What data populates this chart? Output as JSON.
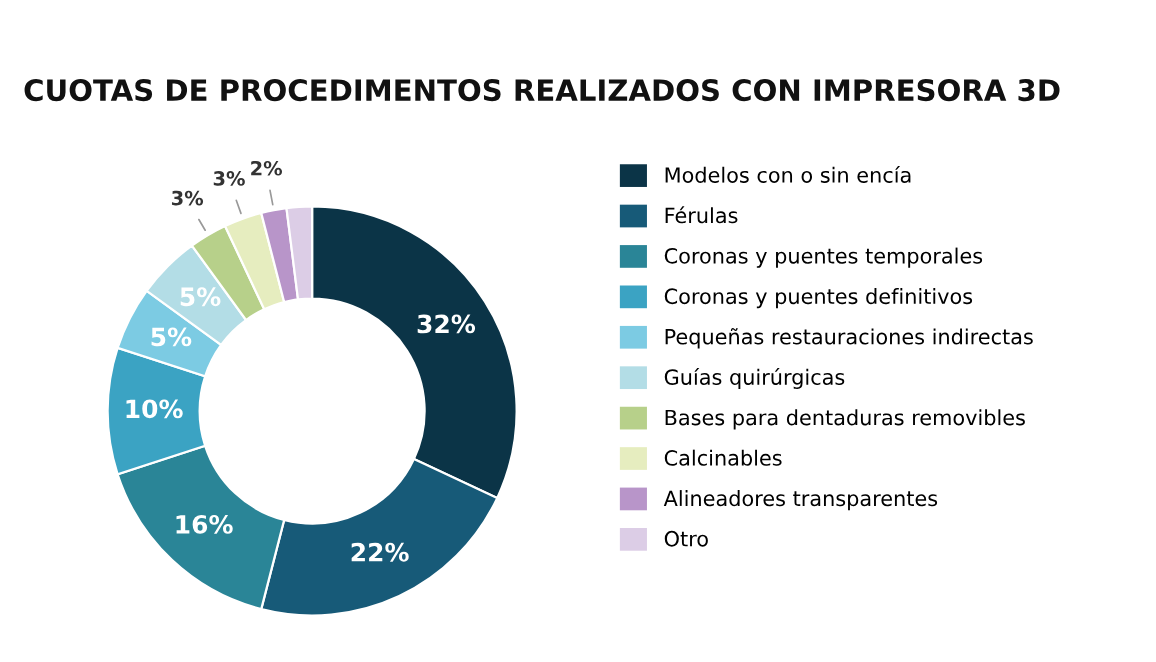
{
  "chart_data": {
    "type": "donut",
    "title": "CUOTAS DE PROCEDIMENTOS REALIZADOS CON IMPRESORA 3D",
    "categories": [
      "Modelos con o sin encía",
      "Férulas",
      "Coronas y puentes temporales",
      "Coronas y puentes definitivos",
      "Pequeñas restauraciones indirectas",
      "Guías quirúrgicas",
      "Bases para dentaduras removibles",
      "Calcinables",
      "Alineadores transparentes",
      "Otro"
    ],
    "values": [
      32,
      22,
      16,
      10,
      5,
      5,
      3,
      3,
      2,
      2
    ],
    "value_labels": [
      "32%",
      "22%",
      "16%",
      "10%",
      "5%",
      "5%",
      "3%",
      "3%",
      "2%",
      null
    ],
    "colors": [
      "#0b3447",
      "#175a78",
      "#2a8597",
      "#3ba3c3",
      "#7ccbe3",
      "#b3dde6",
      "#b7d08a",
      "#e6edbf",
      "#b895c9",
      "#dccde6"
    ],
    "legend": "right"
  }
}
